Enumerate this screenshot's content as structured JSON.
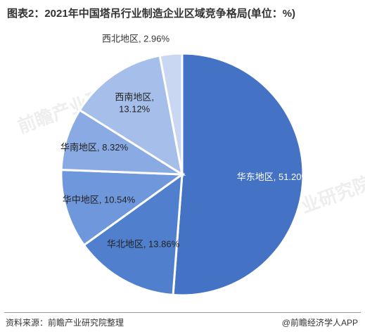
{
  "title": "图表2：2021年中国塔吊行业制造企业区域竞争格局(单位：%)",
  "source": "资料来源：前瞻产业研究院整理",
  "brand": "@前瞻经济学人APP",
  "watermark": "前瞻产业研究院",
  "chart_data": {
    "type": "pie",
    "start": "12 o'clock",
    "direction": "clockwise",
    "slices": [
      {
        "label": "华东地区",
        "value": 51.2,
        "color": "#4472c4",
        "text": "华东地区, 51.20%"
      },
      {
        "label": "华北地区",
        "value": 13.86,
        "color": "#4f7fcd",
        "text": "华北地区, 13.86%"
      },
      {
        "label": "华中地区",
        "value": 10.54,
        "color": "#6f97dc",
        "text": "华中地区, 10.54%"
      },
      {
        "label": "华南地区",
        "value": 8.32,
        "color": "#8aaae3",
        "text": "华南地区, 8.32%"
      },
      {
        "label": "西南地区",
        "value": 13.12,
        "color": "#a6bfea",
        "text": "西南地区,|13.12%"
      },
      {
        "label": "西北地区",
        "value": 2.96,
        "color": "#c9d7f2",
        "text": "西北地区, 2.96%"
      }
    ]
  }
}
